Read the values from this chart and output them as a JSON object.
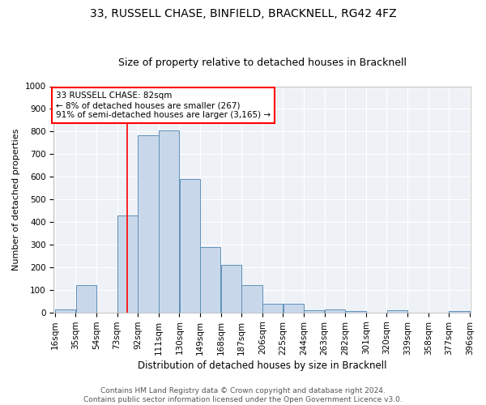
{
  "title1": "33, RUSSELL CHASE, BINFIELD, BRACKNELL, RG42 4FZ",
  "title2": "Size of property relative to detached houses in Bracknell",
  "xlabel": "Distribution of detached houses by size in Bracknell",
  "ylabel": "Number of detached properties",
  "bin_edges": [
    16,
    35,
    54,
    73,
    92,
    111,
    130,
    149,
    168,
    187,
    206,
    225,
    244,
    263,
    282,
    301,
    320,
    339,
    358,
    377,
    396
  ],
  "bar_heights": [
    15,
    120,
    0,
    430,
    785,
    805,
    590,
    290,
    210,
    120,
    40,
    40,
    10,
    15,
    5,
    0,
    10,
    0,
    0,
    5
  ],
  "bar_facecolor": "#c8d8ea",
  "bar_edgecolor": "#6090b8",
  "bar_linewidth": 0.7,
  "property_size": 82,
  "vline_color": "red",
  "vline_linewidth": 1.2,
  "annotation_text": "33 RUSSELL CHASE: 82sqm\n← 8% of detached houses are smaller (267)\n91% of semi-detached houses are larger (3,165) →",
  "annotation_box_color": "white",
  "annotation_box_edgecolor": "red",
  "annotation_fontsize": 7.5,
  "ylim": [
    0,
    1000
  ],
  "yticks": [
    0,
    100,
    200,
    300,
    400,
    500,
    600,
    700,
    800,
    900,
    1000
  ],
  "bg_color": "#eef2f7",
  "grid_color": "white",
  "footer_text": "Contains HM Land Registry data © Crown copyright and database right 2024.\nContains public sector information licensed under the Open Government Licence v3.0.",
  "title1_fontsize": 10,
  "title2_fontsize": 9,
  "xlabel_fontsize": 8.5,
  "ylabel_fontsize": 8,
  "tick_fontsize": 7.5,
  "footer_fontsize": 6.5
}
